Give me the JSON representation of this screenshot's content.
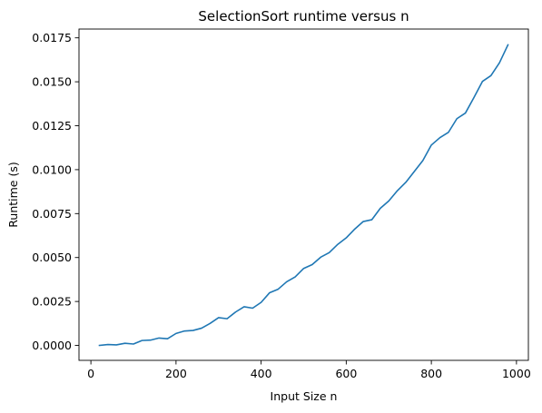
{
  "chart_data": {
    "type": "line",
    "title": "SelectionSort runtime versus n",
    "xlabel": "Input Size n",
    "ylabel": "Runtime (s)",
    "xlim": [
      -28,
      1028
    ],
    "ylim": [
      -0.00085,
      0.018
    ],
    "x_ticks": [
      {
        "value": 0,
        "label": "0"
      },
      {
        "value": 200,
        "label": "200"
      },
      {
        "value": 400,
        "label": "400"
      },
      {
        "value": 600,
        "label": "600"
      },
      {
        "value": 800,
        "label": "800"
      },
      {
        "value": 1000,
        "label": "1000"
      }
    ],
    "y_ticks": [
      {
        "value": 0.0,
        "label": "0.0000"
      },
      {
        "value": 0.0025,
        "label": "0.0025"
      },
      {
        "value": 0.005,
        "label": "0.0050"
      },
      {
        "value": 0.0075,
        "label": "0.0075"
      },
      {
        "value": 0.01,
        "label": "0.0100"
      },
      {
        "value": 0.0125,
        "label": "0.0125"
      },
      {
        "value": 0.015,
        "label": "0.0150"
      },
      {
        "value": 0.0175,
        "label": "0.0175"
      }
    ],
    "grid": false,
    "series": [
      {
        "name": "SelectionSort",
        "color": "#1f77b4",
        "x": [
          20,
          40,
          60,
          80,
          100,
          120,
          140,
          160,
          180,
          200,
          220,
          240,
          260,
          280,
          300,
          320,
          340,
          360,
          380,
          400,
          420,
          440,
          460,
          480,
          500,
          520,
          540,
          560,
          580,
          600,
          620,
          640,
          660,
          680,
          700,
          720,
          740,
          760,
          780,
          800,
          820,
          840,
          860,
          880,
          900,
          920,
          940,
          960,
          980
        ],
        "y": [
          0.0,
          5e-05,
          3e-05,
          0.00012,
          8e-05,
          0.00028,
          0.0003,
          0.00042,
          0.00038,
          0.00068,
          0.00082,
          0.00085,
          0.00098,
          0.00125,
          0.00158,
          0.00152,
          0.0019,
          0.0022,
          0.00212,
          0.00245,
          0.003,
          0.0032,
          0.00362,
          0.0039,
          0.00438,
          0.0046,
          0.00502,
          0.00528,
          0.00575,
          0.00612,
          0.00662,
          0.00705,
          0.00715,
          0.0078,
          0.00822,
          0.0088,
          0.00928,
          0.0099,
          0.01052,
          0.0114,
          0.01182,
          0.01212,
          0.0129,
          0.01322,
          0.0141,
          0.01502,
          0.01535,
          0.01608,
          0.0171
        ]
      }
    ]
  }
}
